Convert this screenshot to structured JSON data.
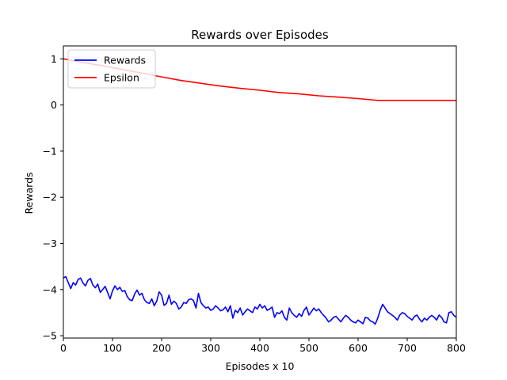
{
  "chart_data": {
    "type": "line",
    "title": "Rewards over Episodes",
    "xlabel": "Episodes x 10",
    "ylabel": "Rewards",
    "xlim": [
      0,
      800
    ],
    "ylim": [
      -5.05,
      1.28
    ],
    "xticks": [
      0,
      100,
      200,
      300,
      400,
      500,
      600,
      700,
      800
    ],
    "yticks": [
      1,
      0,
      -1,
      -2,
      -3,
      -4,
      -5
    ],
    "ytick_labels": [
      "1",
      "0",
      "−1",
      "−2",
      "−3",
      "−4",
      "−5"
    ],
    "grid": false,
    "legend_position": "top-left",
    "series": [
      {
        "name": "Rewards",
        "color": "#0000ff",
        "x": [
          0,
          5,
          10,
          15,
          20,
          25,
          30,
          35,
          40,
          45,
          50,
          55,
          60,
          65,
          70,
          75,
          80,
          85,
          90,
          95,
          100,
          105,
          110,
          115,
          120,
          125,
          130,
          135,
          140,
          145,
          150,
          155,
          160,
          165,
          170,
          175,
          180,
          185,
          190,
          195,
          200,
          205,
          210,
          215,
          220,
          225,
          230,
          235,
          240,
          245,
          250,
          255,
          260,
          265,
          270,
          275,
          280,
          285,
          290,
          295,
          300,
          305,
          310,
          315,
          320,
          325,
          330,
          335,
          340,
          345,
          350,
          355,
          360,
          365,
          370,
          375,
          380,
          385,
          390,
          395,
          400,
          405,
          410,
          415,
          420,
          425,
          430,
          435,
          440,
          445,
          450,
          455,
          460,
          465,
          470,
          475,
          480,
          485,
          490,
          495,
          500,
          505,
          510,
          515,
          520,
          525,
          530,
          535,
          540,
          545,
          550,
          555,
          560,
          565,
          570,
          575,
          580,
          585,
          590,
          595,
          600,
          605,
          610,
          615,
          620,
          625,
          630,
          635,
          640,
          645,
          650,
          655,
          660,
          665,
          670,
          675,
          680,
          685,
          690,
          695,
          700,
          705,
          710,
          715,
          720,
          725,
          730,
          735,
          740,
          745,
          750,
          755,
          760,
          765,
          770,
          775,
          780,
          785,
          790,
          795,
          800
        ],
        "y": [
          -3.75,
          -3.72,
          -3.85,
          -3.98,
          -3.85,
          -3.9,
          -3.78,
          -3.75,
          -3.86,
          -3.92,
          -3.8,
          -3.76,
          -3.9,
          -3.96,
          -3.88,
          -4.06,
          -4.0,
          -3.93,
          -4.06,
          -4.2,
          -4.03,
          -3.92,
          -4.0,
          -3.95,
          -4.04,
          -4.02,
          -4.15,
          -4.22,
          -4.24,
          -4.1,
          -4.01,
          -4.12,
          -4.08,
          -4.22,
          -4.28,
          -4.3,
          -4.2,
          -4.35,
          -4.25,
          -4.05,
          -4.12,
          -4.34,
          -4.3,
          -4.12,
          -4.32,
          -4.25,
          -4.3,
          -4.42,
          -4.38,
          -4.28,
          -4.3,
          -4.22,
          -4.2,
          -4.24,
          -4.4,
          -4.08,
          -4.28,
          -4.35,
          -4.4,
          -4.38,
          -4.45,
          -4.42,
          -4.35,
          -4.4,
          -4.46,
          -4.44,
          -4.38,
          -4.48,
          -4.35,
          -4.62,
          -4.45,
          -4.5,
          -4.4,
          -4.55,
          -4.48,
          -4.42,
          -4.46,
          -4.5,
          -4.38,
          -4.42,
          -4.32,
          -4.4,
          -4.35,
          -4.45,
          -4.42,
          -4.38,
          -4.6,
          -4.5,
          -4.52,
          -4.46,
          -4.6,
          -4.66,
          -4.4,
          -4.5,
          -4.56,
          -4.6,
          -4.52,
          -4.58,
          -4.45,
          -4.38,
          -4.55,
          -4.48,
          -4.4,
          -4.46,
          -4.42,
          -4.5,
          -4.56,
          -4.62,
          -4.7,
          -4.66,
          -4.6,
          -4.58,
          -4.64,
          -4.7,
          -4.62,
          -4.56,
          -4.6,
          -4.66,
          -4.7,
          -4.72,
          -4.66,
          -4.7,
          -4.74,
          -4.6,
          -4.62,
          -4.68,
          -4.7,
          -4.75,
          -4.62,
          -4.45,
          -4.32,
          -4.4,
          -4.48,
          -4.52,
          -4.56,
          -4.6,
          -4.66,
          -4.55,
          -4.5,
          -4.52,
          -4.58,
          -4.62,
          -4.66,
          -4.58,
          -4.55,
          -4.64,
          -4.7,
          -4.62,
          -4.66,
          -4.6,
          -4.56,
          -4.6,
          -4.66,
          -4.55,
          -4.6,
          -4.7,
          -4.72,
          -4.5,
          -4.48,
          -4.56,
          -4.6
        ]
      },
      {
        "name": "Epsilon",
        "color": "#ff0000",
        "x": [
          0,
          40,
          80,
          120,
          160,
          200,
          240,
          280,
          320,
          360,
          400,
          440,
          480,
          520,
          560,
          600,
          640,
          700,
          760,
          800
        ],
        "y": [
          1.0,
          0.92,
          0.85,
          0.77,
          0.69,
          0.61,
          0.53,
          0.47,
          0.41,
          0.36,
          0.32,
          0.27,
          0.24,
          0.2,
          0.17,
          0.14,
          0.1,
          0.1,
          0.1,
          0.1
        ]
      }
    ]
  }
}
